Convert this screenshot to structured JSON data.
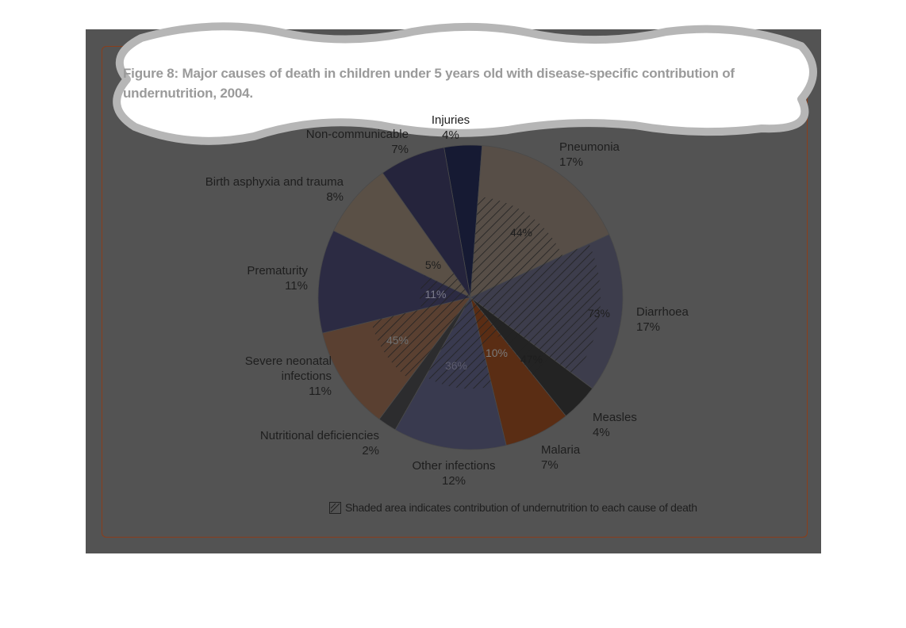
{
  "figure": {
    "title": "Figure 8: Major causes of death in children under 5 years old with disease-specific contribution of undernutrition, 2004."
  },
  "legend": {
    "text": "Shaded area indicates contribution of undernutrition to each cause of death"
  },
  "chart_data": {
    "type": "pie",
    "title": "Figure 8: Major causes of death in children under 5 years old with disease-specific contribution of undernutrition, 2004.",
    "unit": "%",
    "slices": [
      {
        "id": "injuries",
        "label": "Injuries",
        "value": 4,
        "value_label": "4%",
        "color": "#161a33"
      },
      {
        "id": "pneumonia",
        "label": "Pneumonia",
        "value": 17,
        "value_label": "17%",
        "color": "#574e47",
        "undernutrition": 44,
        "undernutrition_label": "44%"
      },
      {
        "id": "diarrhoea",
        "label": "Diarrhoea",
        "value": 17,
        "value_label": "17%",
        "color": "#3d3d4c",
        "undernutrition": 73,
        "undernutrition_label": "73%"
      },
      {
        "id": "measles",
        "label": "Measles",
        "value": 4,
        "value_label": "4%",
        "color": "#232323",
        "undernutrition": 47,
        "undernutrition_label": "47%"
      },
      {
        "id": "malaria",
        "label": "Malaria",
        "value": 7,
        "value_label": "7%",
        "color": "#5a2d14",
        "undernutrition": 10,
        "undernutrition_label": "10%"
      },
      {
        "id": "other-infections",
        "label": "Other infections",
        "value": 12,
        "value_label": "12%",
        "color": "#393a4f",
        "undernutrition": 36,
        "undernutrition_label": "36%"
      },
      {
        "id": "nutritional-deficiencies",
        "label": "Nutritional deficiencies",
        "value": 2,
        "value_label": "2%",
        "color": "#2c2c2e"
      },
      {
        "id": "severe-neonatal-infections",
        "label": "Severe neonatal infections",
        "label_lines": [
          "Severe neonatal",
          "infections"
        ],
        "value": 11,
        "value_label": "11%",
        "color": "#5a4031",
        "undernutrition": 45,
        "undernutrition_label": "45%"
      },
      {
        "id": "prematurity",
        "label": "Prematurity",
        "value": 11,
        "value_label": "11%",
        "color": "#2c2b43",
        "undernutrition": 11,
        "undernutrition_label": "11%"
      },
      {
        "id": "birth-asphyxia-and-trauma",
        "label": "Birth asphyxia and trauma",
        "value": 8,
        "value_label": "8%",
        "color": "#5a5046",
        "undernutrition": 5,
        "undernutrition_label": "5%"
      },
      {
        "id": "non-communicable",
        "label": "Non-communicable",
        "value": 7,
        "value_label": "7%",
        "color": "#25243c"
      }
    ]
  }
}
